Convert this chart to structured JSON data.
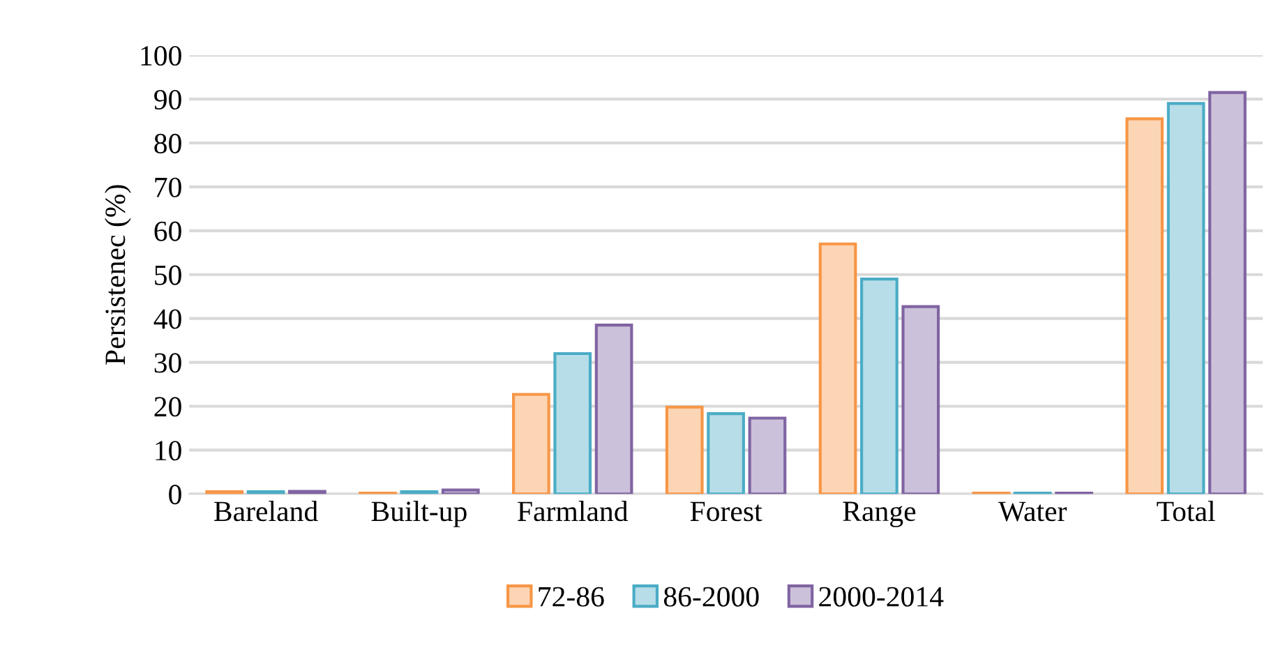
{
  "chart_data": {
    "type": "bar",
    "ylabel": "Persistenec (%)",
    "categories": [
      "Bareland",
      "Built-up",
      "Farmland",
      "Forest",
      "Range",
      "Water",
      "Total"
    ],
    "series": [
      {
        "name": "72-86",
        "color": "#f79646",
        "values": [
          0.5,
          0.2,
          22.7,
          19.8,
          57,
          0.2,
          85.5
        ]
      },
      {
        "name": "86-2000",
        "color": "#4bacc6",
        "values": [
          0.5,
          0.5,
          32,
          18.3,
          49,
          0.2,
          89
        ]
      },
      {
        "name": "2000-2014",
        "color": "#8064a2",
        "values": [
          0.6,
          0.9,
          38.5,
          17.3,
          42.7,
          0.2,
          91.5
        ]
      }
    ],
    "ylim": [
      0,
      100
    ],
    "yticks": [
      0,
      10,
      20,
      30,
      40,
      50,
      60,
      70,
      80,
      90,
      100
    ],
    "grid": "y",
    "legend": "bottom"
  }
}
